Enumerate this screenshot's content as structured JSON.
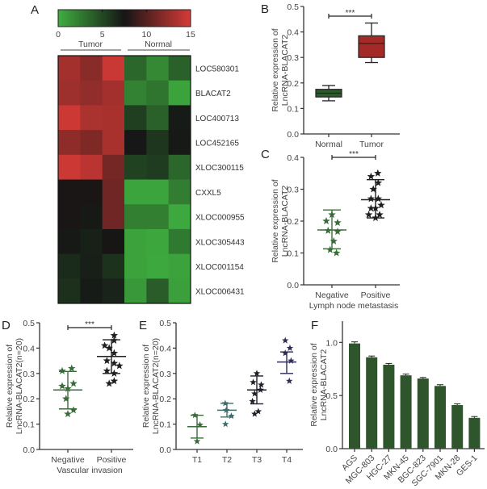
{
  "figure": {
    "panels": [
      "A",
      "B",
      "C",
      "D",
      "E",
      "F"
    ]
  },
  "chart_data": [
    {
      "id": "A",
      "type": "heatmap",
      "title": "",
      "colorbar": {
        "ticks": [
          "0",
          "5",
          "10",
          "15"
        ],
        "range": [
          0,
          15
        ],
        "colors": {
          "low": "#3fae3f",
          "mid": "#151515",
          "high": "#d63a36"
        }
      },
      "group_labels": [
        "Tumor",
        "Normal"
      ],
      "rows": [
        "LOC580301",
        "BLACAT2",
        "LOC400713",
        "LOC452165",
        "XLOC300115",
        "CXXL5",
        "XLOC000955",
        "XLOC305443",
        "XLOC001154",
        "XLOC006431"
      ],
      "values": [
        [
          13.0,
          12.0,
          14.5,
          3.5,
          1.8,
          3.8
        ],
        [
          12.8,
          12.3,
          13.0,
          2.2,
          2.8,
          0.6
        ],
        [
          14.6,
          13.3,
          13.2,
          5.5,
          3.8,
          7.2
        ],
        [
          12.2,
          11.6,
          13.2,
          7.4,
          5.9,
          7.3
        ],
        [
          14.6,
          13.9,
          11.2,
          5.3,
          5.6,
          3.5
        ],
        [
          7.7,
          7.7,
          11.0,
          0.5,
          0.5,
          2.4
        ],
        [
          7.7,
          7.3,
          11.0,
          2.3,
          2.3,
          0.3
        ],
        [
          7.3,
          6.9,
          7.6,
          0.6,
          0.4,
          2.6
        ],
        [
          6.4,
          7.0,
          6.1,
          0.6,
          0.3,
          0.6
        ],
        [
          6.2,
          7.2,
          6.8,
          1.1,
          4.0,
          0.7
        ]
      ]
    },
    {
      "id": "B",
      "type": "box",
      "title": "",
      "xlabel": "",
      "ylabel": [
        "Relative  expression of",
        "LncRNA-BLACAT2"
      ],
      "ylim": [
        0,
        0.5
      ],
      "yticks": [
        "0.0",
        "0.1",
        "0.2",
        "0.3",
        "0.4",
        "0.5"
      ],
      "categories": [
        "Normal",
        "Tumor"
      ],
      "boxes": [
        {
          "name": "Normal",
          "min": 0.13,
          "q1": 0.145,
          "median": 0.16,
          "q3": 0.175,
          "max": 0.19,
          "color": "#2d5a2d"
        },
        {
          "name": "Tumor",
          "min": 0.28,
          "q1": 0.3,
          "median": 0.355,
          "q3": 0.385,
          "max": 0.435,
          "color": "#a32a27"
        }
      ],
      "significance": "***"
    },
    {
      "id": "C",
      "type": "scatter",
      "title": "",
      "xlabel": "Lymph node metastasis",
      "ylabel": [
        "Relative  expression of",
        "LncRNA-BLACAT2"
      ],
      "ylim": [
        0,
        0.4
      ],
      "yticks": [
        "0.0",
        "0.1",
        "0.2",
        "0.3",
        "0.4"
      ],
      "categories": [
        "Negative",
        "Positive"
      ],
      "series": [
        {
          "name": "Negative",
          "color": "#3a6b3a",
          "mean": 0.172,
          "sd_low": 0.113,
          "sd_high": 0.235,
          "points": [
            [
              -0.25,
              0.2
            ],
            [
              0,
              0.22
            ],
            [
              0.25,
              0.195
            ],
            [
              -0.17,
              0.17
            ],
            [
              0.25,
              0.167
            ],
            [
              0.08,
              0.137
            ],
            [
              -0.08,
              0.11
            ],
            [
              0.2,
              0.1
            ]
          ]
        },
        {
          "name": "Positive",
          "color": "#1f1f1f",
          "mean": 0.267,
          "sd_low": 0.21,
          "sd_high": 0.33,
          "points": [
            [
              -0.2,
              0.34
            ],
            [
              0.1,
              0.35
            ],
            [
              0.12,
              0.32
            ],
            [
              -0.1,
              0.3
            ],
            [
              -0.2,
              0.27
            ],
            [
              0.12,
              0.27
            ],
            [
              -0.2,
              0.24
            ],
            [
              0.25,
              0.25
            ],
            [
              0.0,
              0.24
            ],
            [
              -0.3,
              0.22
            ],
            [
              0.18,
              0.22
            ],
            [
              0.0,
              0.21
            ]
          ]
        }
      ],
      "significance": "***"
    },
    {
      "id": "D",
      "type": "scatter",
      "title": "",
      "xlabel": "Vascular invasion",
      "ylabel": [
        "Relative  expression of",
        "LncRNA-BLACAT2(n=20)"
      ],
      "ylim": [
        0,
        0.5
      ],
      "yticks": [
        "0.0",
        "0.1",
        "0.2",
        "0.3",
        "0.4",
        "0.5"
      ],
      "categories": [
        "Negative",
        "Positive"
      ],
      "series": [
        {
          "name": "Negative",
          "color": "#3a6b3a",
          "mean": 0.235,
          "sd_low": 0.16,
          "sd_high": 0.308,
          "points": [
            [
              -0.25,
              0.31
            ],
            [
              0.17,
              0.32
            ],
            [
              -0.25,
              0.25
            ],
            [
              0.25,
              0.26
            ],
            [
              0.0,
              0.24
            ],
            [
              -0.08,
              0.2
            ],
            [
              0.25,
              0.155
            ],
            [
              0.0,
              0.14
            ]
          ]
        },
        {
          "name": "Positive",
          "color": "#1f1f1f",
          "mean": 0.367,
          "sd_low": 0.3,
          "sd_high": 0.433,
          "points": [
            [
              0.12,
              0.45
            ],
            [
              0.12,
              0.43
            ],
            [
              -0.3,
              0.41
            ],
            [
              -0.1,
              0.4
            ],
            [
              0.12,
              0.38
            ],
            [
              -0.2,
              0.35
            ],
            [
              0.12,
              0.34
            ],
            [
              0.35,
              0.33
            ],
            [
              -0.2,
              0.31
            ],
            [
              0.12,
              0.3
            ],
            [
              0.12,
              0.27
            ],
            [
              -0.1,
              0.26
            ]
          ]
        }
      ],
      "significance": "***"
    },
    {
      "id": "E",
      "type": "scatter",
      "title": "",
      "xlabel": "",
      "ylabel": [
        "Relative  expression of",
        "LncRNA-BLACAT2(n=20)"
      ],
      "ylim": [
        0,
        0.5
      ],
      "yticks": [
        "0.0",
        "0.1",
        "0.2",
        "0.3",
        "0.4",
        "0.5"
      ],
      "categories": [
        "T1",
        "T2",
        "T3",
        "T4"
      ],
      "series": [
        {
          "name": "T1",
          "color": "#3a6b3a",
          "mean": 0.09,
          "sd_low": 0.045,
          "sd_high": 0.135,
          "points": [
            [
              -0.15,
              0.135
            ],
            [
              0.2,
              0.097
            ],
            [
              0.0,
              0.032
            ]
          ]
        },
        {
          "name": "T2",
          "color": "#3f6f6c",
          "mean": 0.155,
          "sd_low": 0.128,
          "sd_high": 0.182,
          "points": [
            [
              -0.12,
              0.182
            ],
            [
              -0.05,
              0.155
            ],
            [
              0.3,
              0.132
            ],
            [
              -0.1,
              0.1
            ]
          ]
        },
        {
          "name": "T3",
          "color": "#1f1f2a",
          "mean": 0.235,
          "sd_low": 0.18,
          "sd_high": 0.29,
          "points": [
            [
              0.0,
              0.3
            ],
            [
              -0.25,
              0.265
            ],
            [
              0.3,
              0.255
            ],
            [
              0.25,
              0.235
            ],
            [
              -0.15,
              0.22
            ],
            [
              -0.3,
              0.19
            ],
            [
              -0.15,
              0.14
            ],
            [
              0.1,
              0.15
            ]
          ]
        },
        {
          "name": "T4",
          "color": "#2f2c55",
          "mean": 0.345,
          "sd_low": 0.3,
          "sd_high": 0.385,
          "points": [
            [
              -0.1,
              0.43
            ],
            [
              0.22,
              0.4
            ],
            [
              -0.1,
              0.38
            ],
            [
              0.3,
              0.35
            ],
            [
              0.18,
              0.27
            ]
          ]
        }
      ]
    },
    {
      "id": "F",
      "type": "bar",
      "title": "",
      "xlabel": "",
      "ylabel": [
        "Relative  expression of",
        "LncRNA-BLACAT2"
      ],
      "ylim": [
        0,
        1.2
      ],
      "yticks": [
        "0.0",
        "0.5",
        "1.0"
      ],
      "categories": [
        "AGS",
        "MGC-803",
        "HGC-27",
        "MKN-45",
        "BGC-823",
        "SGC-7901",
        "MKN-28",
        "GES-1"
      ],
      "values": [
        0.99,
        0.86,
        0.79,
        0.69,
        0.66,
        0.59,
        0.41,
        0.29
      ],
      "errors": [
        0.015,
        0.012,
        0.012,
        0.012,
        0.01,
        0.012,
        0.012,
        0.012
      ],
      "color": "#2e552c"
    }
  ]
}
